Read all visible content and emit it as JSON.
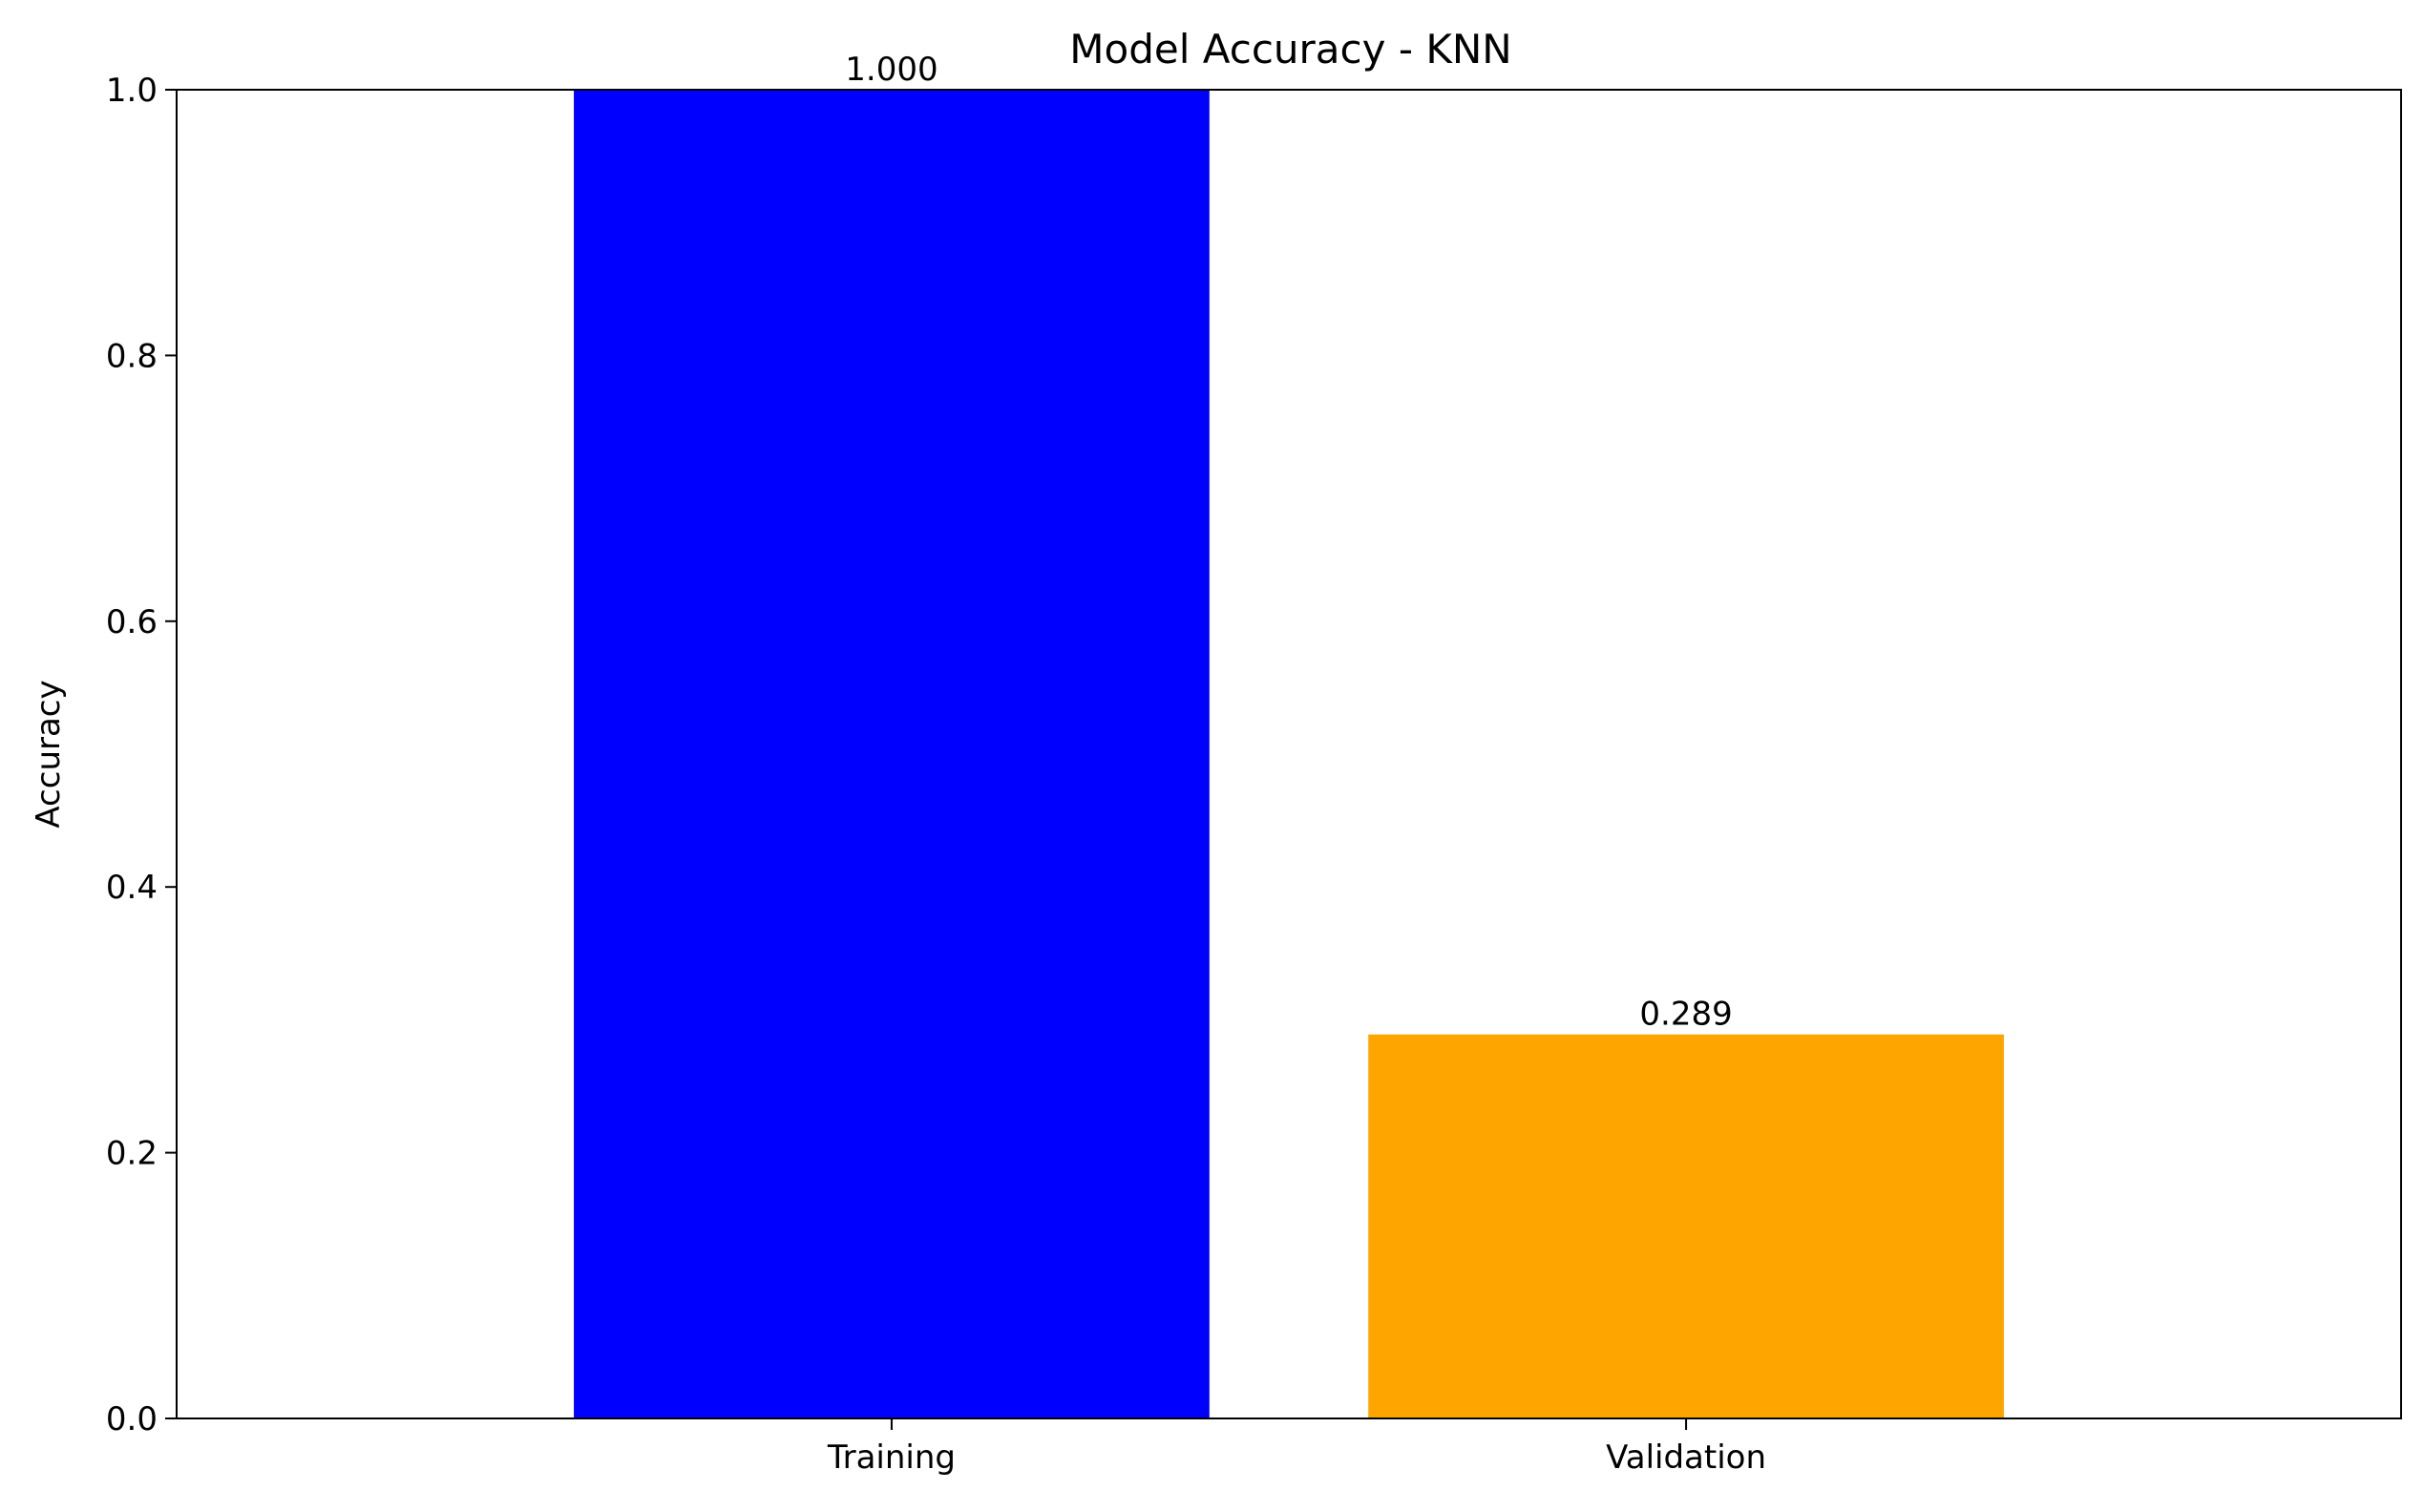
{
  "chart_data": {
    "type": "bar",
    "title": "Model Accuracy - KNN",
    "xlabel": "",
    "ylabel": "Accuracy",
    "categories": [
      "Training",
      "Validation"
    ],
    "values": [
      1.0,
      0.289
    ],
    "data_labels": [
      "1.000",
      "0.289"
    ],
    "colors": [
      "#0000ff",
      "#ffa500"
    ],
    "ylim": [
      0,
      1.0
    ],
    "yticks": [
      0.0,
      0.2,
      0.4,
      0.6,
      0.8,
      1.0
    ],
    "ytick_labels": [
      "0.0",
      "0.2",
      "0.4",
      "0.6",
      "0.8",
      "1.0"
    ],
    "grid": false,
    "legend": "none"
  }
}
